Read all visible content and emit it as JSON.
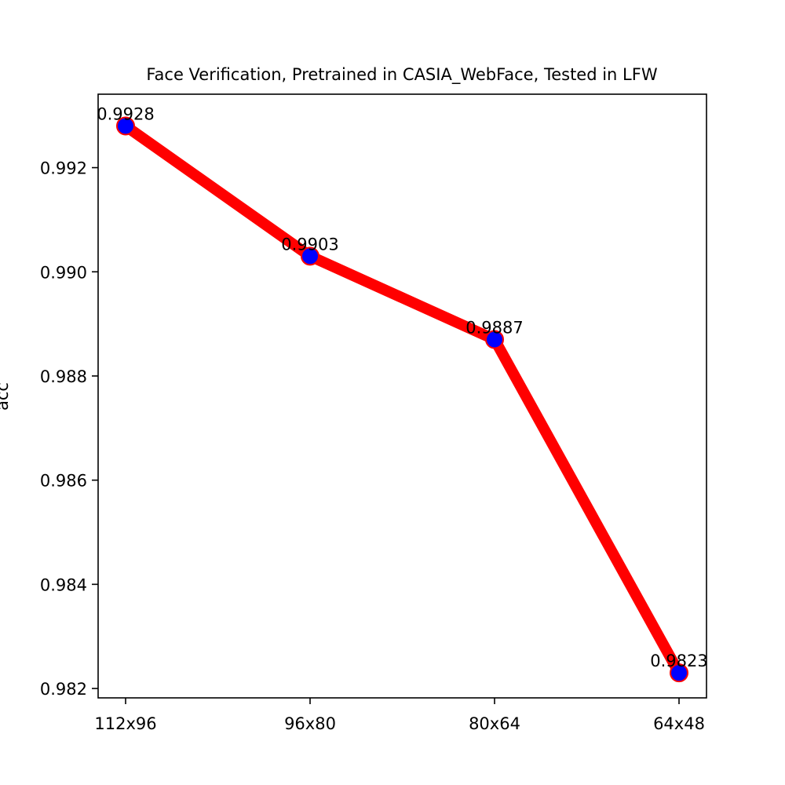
{
  "chart_data": {
    "type": "line",
    "title": "Face Verification, Pretrained in CASIA_WebFace, Tested in LFW",
    "xlabel": "",
    "ylabel": "acc",
    "categories": [
      "112x96",
      "96x80",
      "80x64",
      "64x48"
    ],
    "series": [
      {
        "values": [
          0.9928,
          0.9903,
          0.9887,
          0.9823
        ]
      }
    ],
    "data_labels": [
      "0.9928",
      "0.9903",
      "0.9887",
      "0.9823"
    ],
    "yticks": [
      0.982,
      0.984,
      0.986,
      0.988,
      0.99,
      0.992
    ],
    "ytick_labels": [
      "0.982",
      "0.984",
      "0.986",
      "0.988",
      "0.990",
      "0.992"
    ],
    "ylim": [
      0.98182,
      0.99341
    ],
    "grid": false,
    "legend": "none",
    "colors": {
      "line": "#ff0000",
      "marker_fill": "#0000ff",
      "marker_edge": "#ff0000",
      "axes": "#000000"
    }
  }
}
